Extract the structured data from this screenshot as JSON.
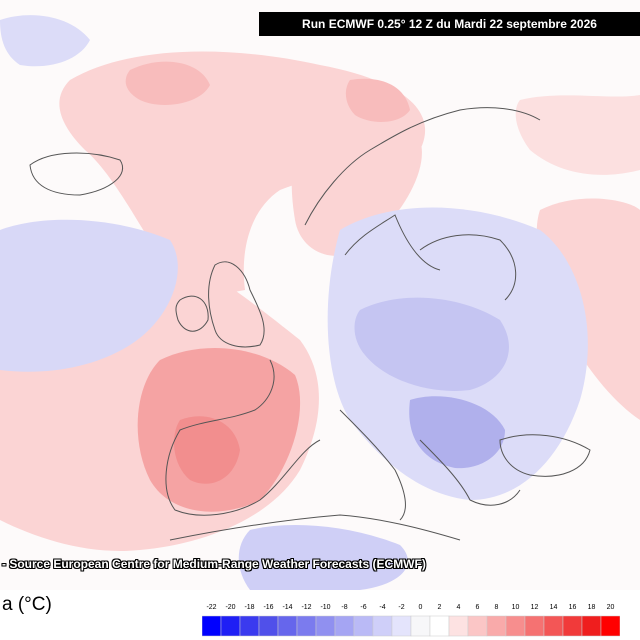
{
  "header": {
    "run_title": "Run ECMWF 0.25° 12 Z du Mardi 22 septembre 2026"
  },
  "credit": {
    "source": "- Source European Centre for Medium-Range Weather Forecasts (ECMWF)"
  },
  "legend": {
    "unit_label": "a (°C)",
    "ticks": [
      "-22",
      "-20",
      "-18",
      "-16",
      "-14",
      "-12",
      "-10",
      "-8",
      "-6",
      "-4",
      "-2",
      "0",
      "2",
      "4",
      "6",
      "8",
      "10",
      "12",
      "14",
      "16",
      "18",
      "20"
    ],
    "colors": [
      "#0000ff",
      "#1f1ff5",
      "#3a3aef",
      "#5050ea",
      "#6666ec",
      "#7b7bee",
      "#9090f0",
      "#a5a5f3",
      "#babaf6",
      "#cfcff9",
      "#e4e4fc",
      "#f7f7f9",
      "#ffffff",
      "#fde2e2",
      "#fbc6c6",
      "#f9aaaa",
      "#f78e8e",
      "#f57272",
      "#f35656",
      "#f13a3a",
      "#ef1e1e",
      "#ff0000"
    ]
  },
  "map": {
    "colors": {
      "ocean_warm": "#fbd4d4",
      "warm_core": "#f6a8a8",
      "cool": "#d6d6f7",
      "cool_core": "#b5b5ee",
      "coast": "#555555"
    }
  }
}
